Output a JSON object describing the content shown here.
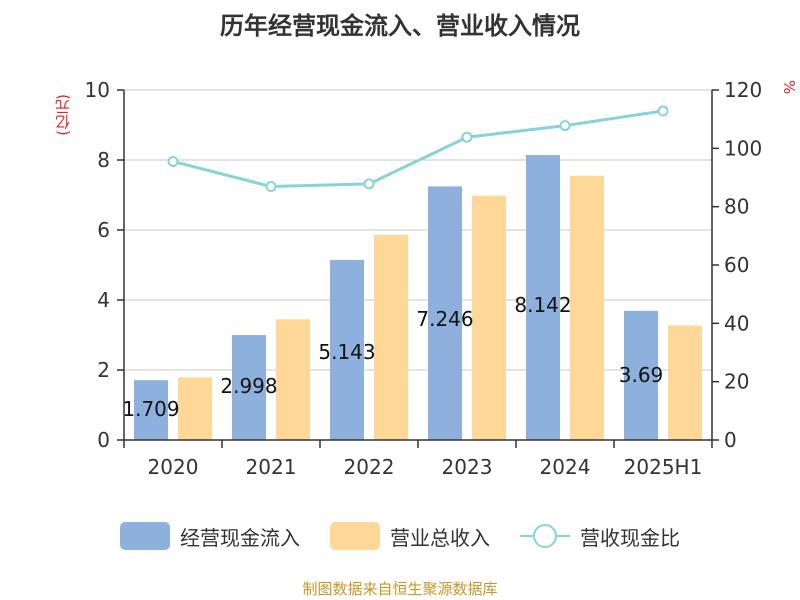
{
  "chart_data": {
    "type": "bar",
    "title": "历年经营现金流入、营业收入情况",
    "ylabel": "(亿元)",
    "ylabel_right": "%",
    "categories": [
      "2020",
      "2021",
      "2022",
      "2023",
      "2024",
      "2025H1"
    ],
    "ylim": [
      0,
      10
    ],
    "yticks": [
      "0",
      "2",
      "4",
      "6",
      "8",
      "10"
    ],
    "ylim_right": [
      0,
      120
    ],
    "yticks_right": [
      "0",
      "20",
      "40",
      "60",
      "80",
      "100",
      "120"
    ],
    "series": [
      {
        "name": "经营现金流入",
        "type": "bar",
        "axis": "left",
        "color": "#8eb0dd",
        "values": [
          1.709,
          2.998,
          5.143,
          7.246,
          8.142,
          3.69
        ],
        "labels": [
          "1.709",
          "2.998",
          "5.143",
          "7.246",
          "8.142",
          "3.69"
        ]
      },
      {
        "name": "营业总收入",
        "type": "bar",
        "axis": "left",
        "color": "#ffd898",
        "values": [
          1.79,
          3.45,
          5.86,
          6.98,
          7.55,
          3.27
        ]
      },
      {
        "name": "营收现金比",
        "type": "line",
        "axis": "right",
        "color": "#86d4d6",
        "values": [
          95.5,
          86.9,
          87.8,
          103.8,
          107.8,
          112.8
        ]
      }
    ],
    "grid": true,
    "legend_position": "bottom"
  },
  "footer": "制图数据来自恒生聚源数据库"
}
